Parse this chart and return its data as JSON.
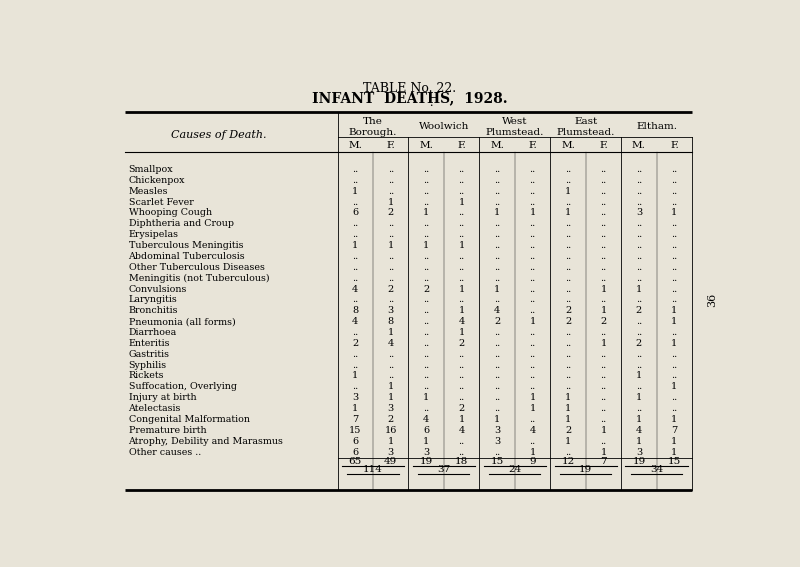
{
  "title1": "TABLE No. 22.",
  "title2": "INFANT  DEATHS,  1928.",
  "bg_color": "#e8e4d8",
  "col_headers_row1": [
    "The\nBorough.",
    "Woolwich",
    "West\nPlumstead.",
    "East\nPlumstead.",
    "Eltham."
  ],
  "col_headers_row2": [
    "M.",
    "F.",
    "M.",
    "F.",
    "M.",
    "F.",
    "M.",
    "F.",
    "M.",
    "F."
  ],
  "causes": [
    "Smallpox",
    "Chickenpox",
    "Measles",
    "Scarlet Fever",
    "Whooping Cough",
    "Diphtheria and Croup",
    "Erysipelas",
    "Tuberculous Meningitis",
    "Abdominal Tuberculosis",
    "Other Tuberculous Diseases",
    "Meningitis (not Tuberculous)",
    "Convulsions",
    "Laryngitis",
    "Bronchitis",
    "Pneumonia (all forms)",
    "Diarrhoea",
    "Enteritis",
    "Gastritis",
    "Syphilis",
    "Rickets",
    "Suffocation, Overlying",
    "Injury at birth",
    "Atelectasis",
    "Congenital Malformation",
    "Premature birth",
    "Atrophy, Debility and Marasmus",
    "Other causes .."
  ],
  "data": [
    [
      "..",
      "..",
      "..",
      "..",
      "..",
      "..",
      "..",
      "..",
      "..",
      ".."
    ],
    [
      "..",
      "..",
      "..",
      "..",
      "..",
      "..",
      "..",
      "..",
      "..",
      ".."
    ],
    [
      "1",
      "..",
      "..",
      "..",
      "..",
      "..",
      "1",
      "..",
      "..",
      ".."
    ],
    [
      "..",
      "1",
      "..",
      "1",
      "..",
      "..",
      "..",
      "..",
      "..",
      ".."
    ],
    [
      "6",
      "2",
      "1",
      "..",
      "1",
      "1",
      "1",
      "..",
      "3",
      "1"
    ],
    [
      "..",
      "..",
      "..",
      "..",
      "..",
      "..",
      "..",
      "..",
      "..",
      ".."
    ],
    [
      "..",
      "..",
      "..",
      "..",
      "..",
      "..",
      "..",
      "..",
      "..",
      ".."
    ],
    [
      "1",
      "1",
      "1",
      "1",
      "..",
      "..",
      "..",
      "..",
      "..",
      ".."
    ],
    [
      "..",
      "..",
      "..",
      "..",
      "..",
      "..",
      "..",
      "..",
      "..",
      ".."
    ],
    [
      "..",
      "..",
      "..",
      "..",
      "..",
      "..",
      "..",
      "..",
      "..",
      ".."
    ],
    [
      "..",
      "..",
      "..",
      "..",
      "..",
      "..",
      "..",
      "..",
      "..",
      ".."
    ],
    [
      "4",
      "2",
      "2",
      "1",
      "1",
      "..",
      "..",
      "1",
      "1",
      ".."
    ],
    [
      "..",
      "..",
      "..",
      "..",
      "..",
      "..",
      "..",
      "..",
      "..",
      ".."
    ],
    [
      "8",
      "3",
      "..",
      "1",
      "4",
      "..",
      "2",
      "1",
      "2",
      "1"
    ],
    [
      "4",
      "8",
      "..",
      "4",
      "2",
      "1",
      "2",
      "2",
      "..",
      "1"
    ],
    [
      "..",
      "1",
      "..",
      "1",
      "..",
      "..",
      "..",
      "..",
      "..",
      ".."
    ],
    [
      "2",
      "4",
      "..",
      "2",
      "..",
      "..",
      "..",
      "1",
      "2",
      "1"
    ],
    [
      "..",
      "..",
      "..",
      "..",
      "..",
      "..",
      "..",
      "..",
      "..",
      ".."
    ],
    [
      "..",
      "..",
      "..",
      "..",
      "..",
      "..",
      "..",
      "..",
      "..",
      ".."
    ],
    [
      "1",
      "..",
      "..",
      "..",
      "..",
      "..",
      "..",
      "..",
      "1",
      ".."
    ],
    [
      "..",
      "1",
      "..",
      "..",
      "..",
      "..",
      "..",
      "..",
      "..",
      "1"
    ],
    [
      "3",
      "1",
      "1",
      "..",
      "..",
      "1",
      "1",
      "..",
      "1",
      ".."
    ],
    [
      "1",
      "3",
      "..",
      "2",
      "..",
      "1",
      "1",
      "..",
      "..",
      ".."
    ],
    [
      "7",
      "2",
      "4",
      "1",
      "1",
      "..",
      "1",
      "..",
      "1",
      "1"
    ],
    [
      "15",
      "16",
      "6",
      "4",
      "3",
      "4",
      "2",
      "1",
      "4",
      "7"
    ],
    [
      "6",
      "1",
      "1",
      "..",
      "3",
      "..",
      "1",
      "..",
      "1",
      "1"
    ],
    [
      "6",
      "3",
      "3",
      "..",
      "..",
      "1",
      "..",
      "1",
      "3",
      "1"
    ]
  ],
  "totals_row": [
    "65",
    "49",
    "19",
    "18",
    "15",
    "9",
    "12",
    "7",
    "19",
    "15"
  ],
  "subtotals": [
    "114",
    "37",
    "24",
    "19",
    "34"
  ],
  "page_number": "36"
}
